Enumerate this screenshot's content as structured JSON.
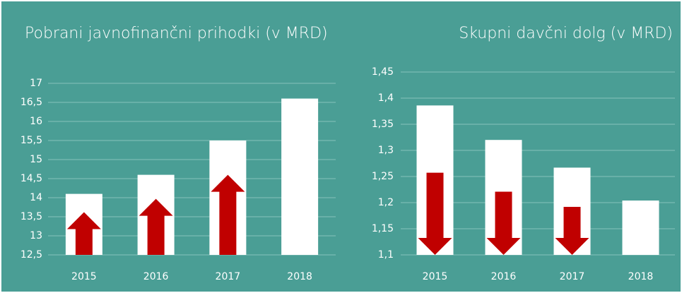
{
  "chart_data": [
    {
      "type": "bar",
      "title": "Pobrani javnofinančni prihodki (v MRD)",
      "categories": [
        "2015",
        "2016",
        "2017",
        "2018"
      ],
      "values": [
        14.1,
        14.6,
        15.5,
        16.6
      ],
      "color": "#ffffff",
      "ylim": [
        12.5,
        17
      ],
      "yticks": [
        {
          "value": 12.5,
          "label": "12,5"
        },
        13,
        {
          "value": 13.5,
          "label": "13,5"
        },
        14,
        {
          "value": 14.5,
          "label": "14,5"
        },
        15,
        {
          "value": 15.5,
          "label": "15,5"
        },
        16,
        {
          "value": 16.5,
          "label": "16,5"
        },
        17
      ],
      "grid": true
    },
    {
      "type": "bar",
      "title": "Skupni davčni dolg  (v MRD)",
      "categories": [
        "2015",
        "2016",
        "2017",
        "2018"
      ],
      "values": [
        1.386,
        1.32,
        1.267,
        1.204
      ],
      "color": "#ffffff",
      "ylim": [
        1.1,
        1.45
      ],
      "yticks": [
        {
          "value": 1.1,
          "label": "1,1"
        },
        {
          "value": 1.15,
          "label": "1,15"
        },
        {
          "value": 1.2,
          "label": "1,2"
        },
        {
          "value": 1.25,
          "label": "1,25"
        },
        {
          "value": 1.3,
          "label": "1,3"
        },
        {
          "value": 1.35,
          "label": "1,35"
        },
        {
          "value": 1.4,
          "label": "1,4"
        },
        {
          "value": 1.45,
          "label": "1,45"
        }
      ],
      "grid": true
    }
  ]
}
